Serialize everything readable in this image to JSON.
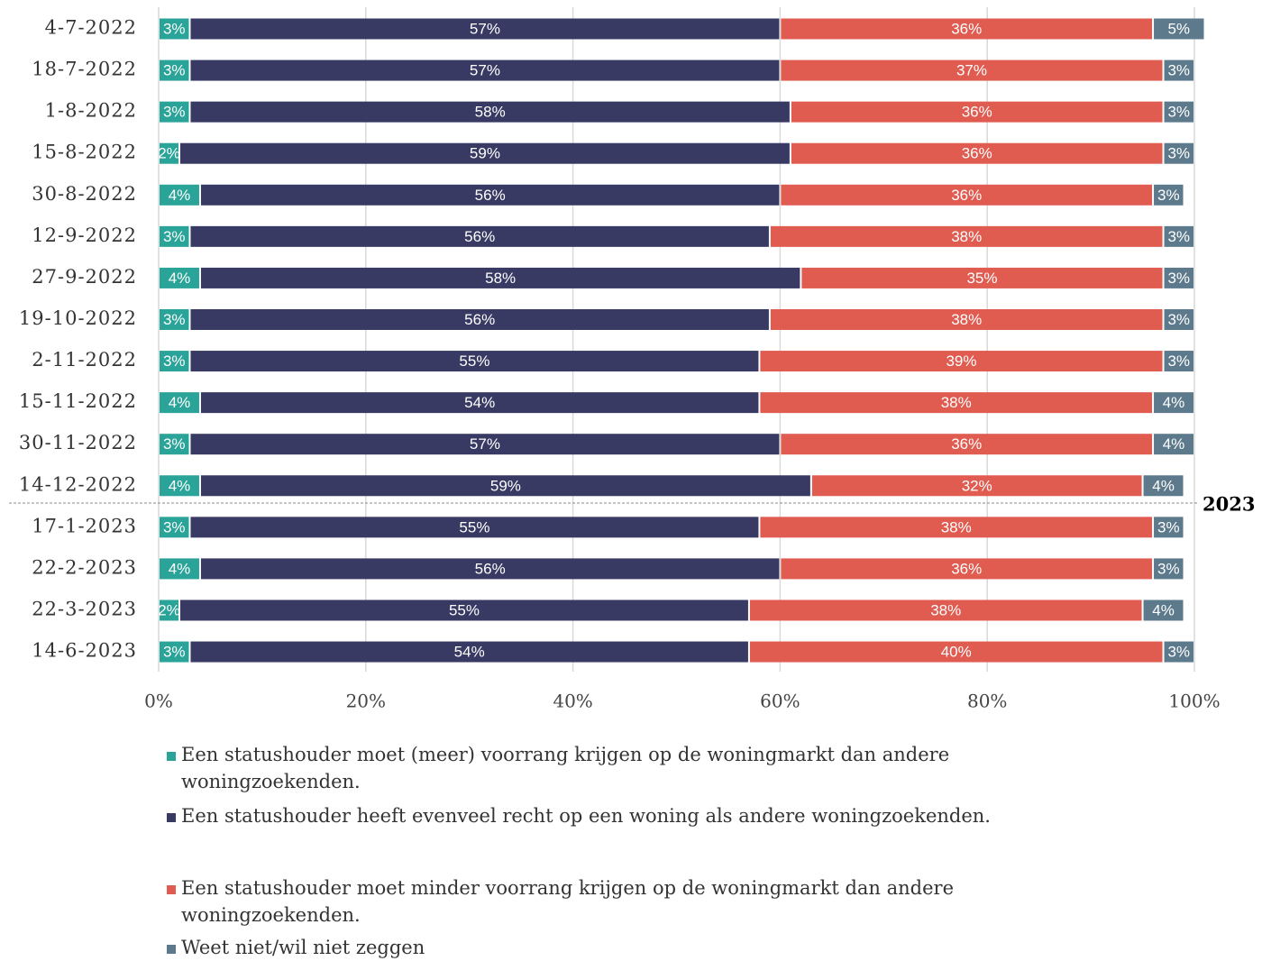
{
  "chart_data": {
    "type": "stacked-bar-horizontal",
    "categories": [
      "4-7-2022",
      "18-7-2022",
      "1-8-2022",
      "15-8-2022",
      "30-8-2022",
      "12-9-2022",
      "27-9-2022",
      "19-10-2022",
      "2-11-2022",
      "15-11-2022",
      "30-11-2022",
      "14-12-2022",
      "17-1-2023",
      "22-2-2023",
      "22-3-2023",
      "14-6-2023"
    ],
    "series": [
      {
        "name": "Een statushouder moet (meer) voorrang krijgen op de woningmarkt dan andere woningzoekenden.",
        "color": "#2aa398",
        "values": [
          3,
          3,
          3,
          2,
          4,
          3,
          4,
          3,
          3,
          4,
          3,
          4,
          3,
          4,
          2,
          3
        ],
        "value_labels": [
          "3%",
          "3%",
          "3%",
          "2%",
          "4%",
          "3%",
          "4%",
          "3%",
          "3%",
          "4%",
          "3%",
          "4%",
          "3%",
          "4%",
          "2%",
          "3%"
        ]
      },
      {
        "name": "Een statushouder heeft evenveel recht op een woning als andere woningzoekenden.",
        "color": "#383a63",
        "values": [
          57,
          57,
          58,
          59,
          56,
          56,
          58,
          56,
          55,
          54,
          57,
          59,
          55,
          56,
          55,
          54
        ],
        "value_labels": [
          "57%",
          "57%",
          "58%",
          "59%",
          "56%",
          "56%",
          "58%",
          "56%",
          "55%",
          "54%",
          "57%",
          "59%",
          "55%",
          "56%",
          "55%",
          "54%"
        ]
      },
      {
        "name": "Een statushouder moet minder voorrang krijgen op de woningmarkt dan andere woningzoekenden.",
        "color": "#e05c51",
        "values": [
          36,
          37,
          36,
          36,
          36,
          38,
          35,
          38,
          39,
          38,
          36,
          32,
          38,
          36,
          38,
          40
        ],
        "value_labels": [
          "36%",
          "37%",
          "36%",
          "36%",
          "36%",
          "38%",
          "35%",
          "38%",
          "39%",
          "38%",
          "36%",
          "32%",
          "38%",
          "36%",
          "38%",
          "40%"
        ]
      },
      {
        "name": "Weet niet/wil niet zeggen",
        "color": "#5d7a8c",
        "values": [
          5,
          3,
          3,
          3,
          3,
          3,
          3,
          3,
          3,
          4,
          4,
          4,
          3,
          3,
          4,
          3
        ],
        "value_labels": [
          "5%",
          "3%",
          "3%",
          "3%",
          "3%",
          "3%",
          "3%",
          "3%",
          "3%",
          "4%",
          "4%",
          "4%",
          "3%",
          "3%",
          "4%",
          "3%"
        ]
      }
    ],
    "xlim": [
      0,
      100
    ],
    "xticks": [
      {
        "value": 0,
        "label": "0%"
      },
      {
        "value": 20,
        "label": "20%"
      },
      {
        "value": 40,
        "label": "40%"
      },
      {
        "value": 60,
        "label": "60%"
      },
      {
        "value": 80,
        "label": "80%"
      },
      {
        "value": 100,
        "label": "100%"
      }
    ],
    "grid": true,
    "annotation": "2023"
  }
}
